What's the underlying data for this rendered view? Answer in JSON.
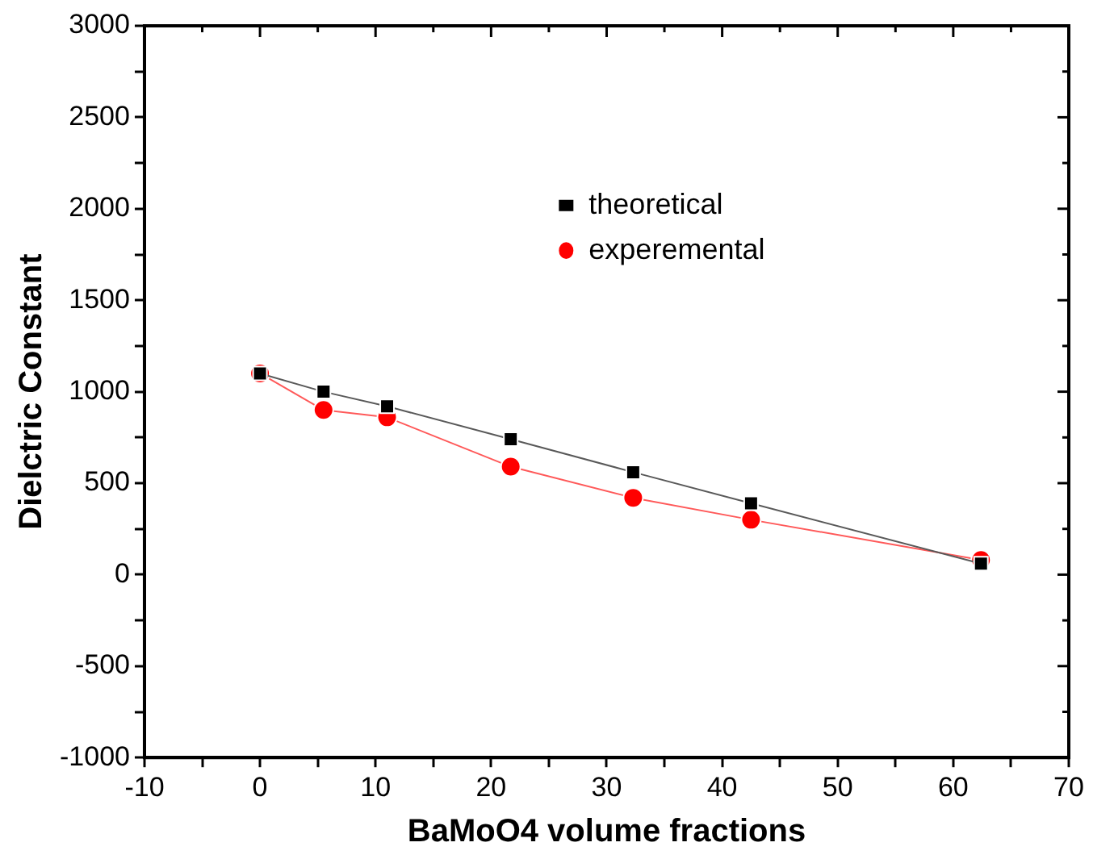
{
  "chart_data": {
    "type": "line",
    "xlabel": "BaMoO4 volume fractions",
    "ylabel": "Dielctric Constant",
    "xlim": [
      -10,
      70
    ],
    "xticks": [
      -10,
      {
        "value": -5,
        "label": null
      },
      0,
      {
        "value": 5,
        "label": null
      },
      10,
      {
        "value": 15,
        "label": null
      },
      20,
      {
        "value": 25,
        "label": null
      },
      30,
      {
        "value": 35,
        "label": null
      },
      40,
      {
        "value": 45,
        "label": null
      },
      50,
      {
        "value": 55,
        "label": null
      },
      60,
      {
        "value": 65,
        "label": null
      },
      70
    ],
    "ylim": [
      -1000,
      3000
    ],
    "yticks": [
      -1000,
      {
        "value": -750,
        "label": null
      },
      -500,
      {
        "value": -250,
        "label": null
      },
      0,
      {
        "value": 250,
        "label": null
      },
      500,
      {
        "value": 750,
        "label": null
      },
      1000,
      {
        "value": 1250,
        "label": null
      },
      1500,
      {
        "value": 1750,
        "label": null
      },
      2000,
      {
        "value": 2250,
        "label": null
      },
      2500,
      {
        "value": 2750,
        "label": null
      },
      3000
    ],
    "x": [
      0,
      5.5,
      11,
      21.7,
      32.3,
      42.5,
      62.4
    ],
    "series": [
      {
        "name": "theoretical",
        "color": "#000000",
        "marker": "square",
        "values": [
          1100,
          1000,
          920,
          740,
          560,
          390,
          60
        ]
      },
      {
        "name": "experemental",
        "color": "#ff0000",
        "marker": "circle",
        "values": [
          1100,
          900,
          860,
          590,
          420,
          300,
          80
        ]
      }
    ],
    "legend": "top right",
    "line_style": "solid"
  }
}
